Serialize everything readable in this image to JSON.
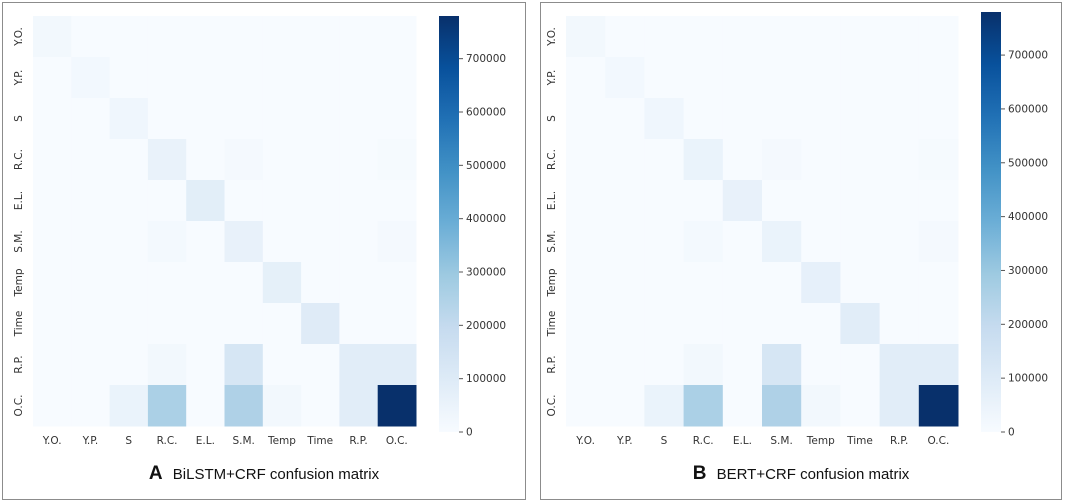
{
  "chart_data": [
    {
      "type": "heatmap",
      "panel_letter": "A",
      "caption": "BiLSTM+CRF confusion matrix",
      "xlabel": "",
      "ylabel": "",
      "categories": [
        "Y.O.",
        "Y.P.",
        "S",
        "R.C.",
        "E.L.",
        "S.M.",
        "Temp",
        "Time",
        "R.P.",
        "O.C."
      ],
      "colorbar": {
        "min": 0,
        "max": 780000,
        "ticks": [
          0,
          100000,
          200000,
          300000,
          400000,
          500000,
          600000,
          700000
        ],
        "colormap": "Blues"
      },
      "values": [
        [
          20000,
          0,
          0,
          0,
          0,
          0,
          0,
          0,
          0,
          0
        ],
        [
          0,
          18000,
          0,
          0,
          0,
          0,
          0,
          0,
          0,
          0
        ],
        [
          0,
          0,
          30000,
          0,
          0,
          0,
          0,
          0,
          0,
          0
        ],
        [
          0,
          0,
          0,
          55000,
          0,
          12000,
          0,
          0,
          0,
          8000
        ],
        [
          0,
          0,
          0,
          0,
          80000,
          0,
          0,
          0,
          0,
          0
        ],
        [
          0,
          0,
          0,
          15000,
          0,
          60000,
          0,
          0,
          0,
          10000
        ],
        [
          0,
          0,
          0,
          0,
          0,
          0,
          70000,
          0,
          0,
          0
        ],
        [
          0,
          0,
          0,
          0,
          0,
          0,
          0,
          95000,
          0,
          0
        ],
        [
          0,
          0,
          0,
          20000,
          0,
          130000,
          0,
          0,
          85000,
          85000
        ],
        [
          0,
          0,
          50000,
          260000,
          0,
          250000,
          20000,
          0,
          85000,
          780000
        ]
      ]
    },
    {
      "type": "heatmap",
      "panel_letter": "B",
      "caption": "BERT+CRF confusion matrix",
      "xlabel": "",
      "ylabel": "",
      "categories": [
        "Y.O.",
        "Y.P.",
        "S",
        "R.C.",
        "E.L.",
        "S.M.",
        "Temp",
        "Time",
        "R.P.",
        "O.C."
      ],
      "colorbar": {
        "min": 0,
        "max": 780000,
        "ticks": [
          0,
          100000,
          200000,
          300000,
          400000,
          500000,
          600000,
          700000
        ],
        "colormap": "Blues"
      },
      "values": [
        [
          20000,
          0,
          0,
          0,
          0,
          0,
          0,
          0,
          0,
          0
        ],
        [
          0,
          18000,
          0,
          0,
          0,
          0,
          0,
          0,
          0,
          0
        ],
        [
          0,
          0,
          30000,
          0,
          0,
          0,
          0,
          0,
          0,
          0
        ],
        [
          0,
          0,
          0,
          50000,
          0,
          12000,
          0,
          0,
          0,
          8000
        ],
        [
          0,
          0,
          0,
          0,
          60000,
          0,
          0,
          0,
          0,
          0
        ],
        [
          0,
          0,
          0,
          15000,
          0,
          50000,
          0,
          0,
          0,
          10000
        ],
        [
          0,
          0,
          0,
          0,
          0,
          0,
          65000,
          0,
          0,
          0
        ],
        [
          0,
          0,
          0,
          0,
          0,
          0,
          0,
          85000,
          0,
          0
        ],
        [
          0,
          0,
          0,
          20000,
          0,
          130000,
          0,
          0,
          85000,
          85000
        ],
        [
          0,
          0,
          50000,
          260000,
          0,
          250000,
          20000,
          0,
          85000,
          780000
        ]
      ]
    }
  ]
}
